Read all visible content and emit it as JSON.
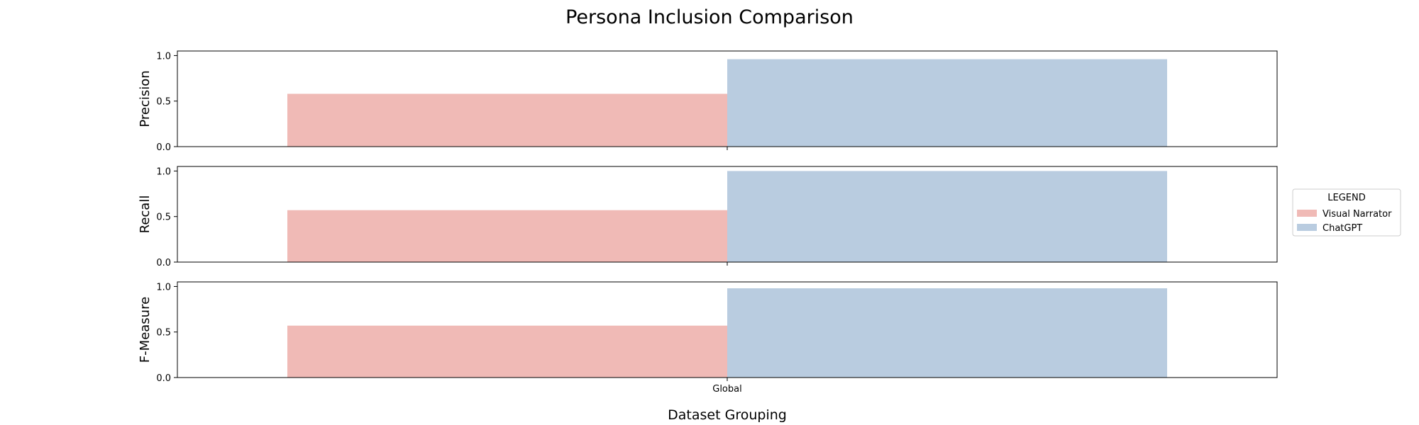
{
  "chart_data": {
    "type": "bar",
    "title": "Persona Inclusion Comparison",
    "xlabel": "Dataset Grouping",
    "categories": [
      "Global"
    ],
    "legend": {
      "title": "LEGEND",
      "placement": "right"
    },
    "series": [
      {
        "name": "Visual Narrator",
        "color": "#f0bab6"
      },
      {
        "name": "ChatGPT",
        "color": "#b9cce0"
      }
    ],
    "panels": [
      {
        "ylabel": "Precision",
        "ylim": [
          0,
          1.05
        ],
        "yticks": [
          "0.0",
          "0.5",
          "1.0"
        ],
        "values": {
          "Visual Narrator": 0.58,
          "ChatGPT": 0.96
        }
      },
      {
        "ylabel": "Recall",
        "ylim": [
          0,
          1.05
        ],
        "yticks": [
          "0.0",
          "0.5",
          "1.0"
        ],
        "values": {
          "Visual Narrator": 0.57,
          "ChatGPT": 1.0
        }
      },
      {
        "ylabel": "F-Measure",
        "ylim": [
          0,
          1.05
        ],
        "yticks": [
          "0.0",
          "0.5",
          "1.0"
        ],
        "values": {
          "Visual Narrator": 0.57,
          "ChatGPT": 0.98
        }
      }
    ],
    "grid": false
  }
}
